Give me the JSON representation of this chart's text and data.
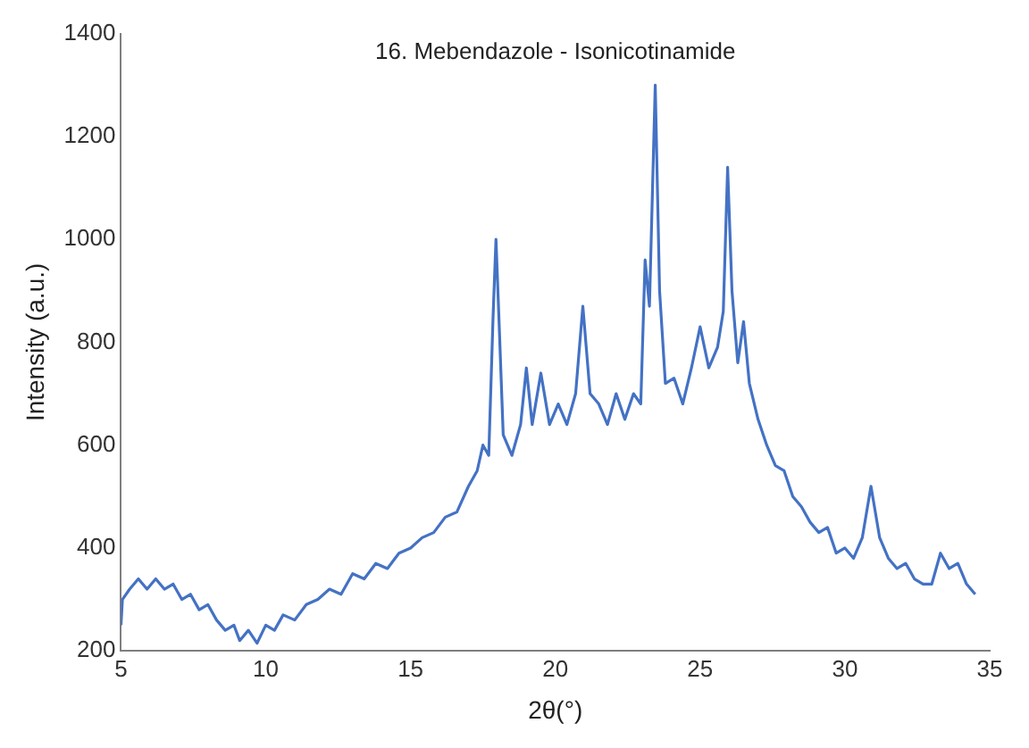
{
  "chart_data": {
    "type": "line",
    "title": "16. Mebendazole - Isonicotinamide",
    "xlabel": "2θ(°)",
    "ylabel": "Intensity (a.u.)",
    "xlim": [
      5,
      35
    ],
    "xticks": [
      5,
      10,
      15,
      20,
      25,
      30,
      35
    ],
    "ylim": [
      200,
      1400
    ],
    "yticks": [
      200,
      400,
      600,
      800,
      1000,
      1200,
      1400
    ],
    "grid": false,
    "legend": false,
    "marker": "none",
    "series": [
      {
        "color": "#4472c4",
        "x": [
          5.0,
          5.05,
          5.3,
          5.6,
          5.9,
          6.2,
          6.5,
          6.8,
          7.1,
          7.4,
          7.7,
          8.0,
          8.3,
          8.6,
          8.9,
          9.1,
          9.4,
          9.7,
          10.0,
          10.3,
          10.6,
          11.0,
          11.4,
          11.8,
          12.2,
          12.6,
          13.0,
          13.4,
          13.8,
          14.2,
          14.6,
          15.0,
          15.4,
          15.8,
          16.2,
          16.6,
          17.0,
          17.3,
          17.5,
          17.7,
          17.85,
          17.95,
          18.05,
          18.2,
          18.5,
          18.8,
          19.0,
          19.2,
          19.5,
          19.8,
          20.1,
          20.4,
          20.7,
          20.95,
          21.2,
          21.5,
          21.8,
          22.1,
          22.4,
          22.7,
          22.95,
          23.1,
          23.25,
          23.45,
          23.6,
          23.8,
          24.1,
          24.4,
          24.7,
          25.0,
          25.3,
          25.6,
          25.8,
          25.95,
          26.1,
          26.3,
          26.5,
          26.7,
          27.0,
          27.3,
          27.6,
          27.9,
          28.2,
          28.5,
          28.8,
          29.1,
          29.4,
          29.7,
          30.0,
          30.3,
          30.6,
          30.9,
          31.2,
          31.5,
          31.8,
          32.1,
          32.4,
          32.7,
          33.0,
          33.3,
          33.6,
          33.9,
          34.2,
          34.5
        ],
        "values": [
          250,
          300,
          320,
          340,
          320,
          340,
          320,
          330,
          300,
          310,
          280,
          290,
          260,
          240,
          250,
          220,
          240,
          215,
          250,
          240,
          270,
          260,
          290,
          300,
          320,
          310,
          350,
          340,
          370,
          360,
          390,
          400,
          420,
          430,
          460,
          470,
          520,
          550,
          600,
          580,
          850,
          1000,
          850,
          620,
          580,
          640,
          750,
          640,
          740,
          640,
          680,
          640,
          700,
          870,
          700,
          680,
          640,
          700,
          650,
          700,
          680,
          960,
          870,
          1300,
          900,
          720,
          730,
          680,
          750,
          830,
          750,
          790,
          860,
          1140,
          900,
          760,
          840,
          720,
          650,
          600,
          560,
          550,
          500,
          480,
          450,
          430,
          440,
          390,
          400,
          380,
          420,
          520,
          420,
          380,
          360,
          370,
          340,
          330,
          330,
          390,
          360,
          370,
          330,
          310
        ]
      }
    ]
  }
}
